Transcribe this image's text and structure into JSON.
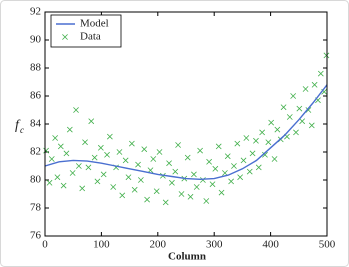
{
  "chart_data": {
    "type": "line",
    "x_label": "Column",
    "y_label": "f",
    "y_label_subscript": "c",
    "xlim": [
      0,
      500
    ],
    "xticks": [
      0,
      100,
      200,
      300,
      400,
      500
    ],
    "ylim": [
      76,
      92
    ],
    "yticks": [
      76,
      78,
      80,
      82,
      84,
      86,
      88,
      90,
      92
    ],
    "legend": "upper left",
    "series": [
      {
        "name": "Model",
        "type": "line",
        "color": "#4a6fd0",
        "x": [
          0,
          25,
          50,
          75,
          100,
          125,
          150,
          175,
          200,
          225,
          250,
          275,
          300,
          325,
          350,
          375,
          400,
          425,
          450,
          475,
          500
        ],
        "values": [
          81.0,
          81.3,
          81.4,
          81.35,
          81.2,
          81.0,
          80.8,
          80.6,
          80.4,
          80.25,
          80.1,
          80.05,
          80.1,
          80.35,
          80.8,
          81.4,
          82.3,
          83.2,
          84.3,
          85.5,
          86.8
        ]
      },
      {
        "name": "Data",
        "type": "scatter",
        "color": "#3fae49",
        "x": [
          2,
          8,
          12,
          18,
          22,
          28,
          33,
          38,
          44,
          49,
          55,
          60,
          66,
          71,
          77,
          82,
          88,
          93,
          99,
          104,
          110,
          115,
          121,
          126,
          132,
          137,
          143,
          148,
          154,
          159,
          165,
          170,
          176,
          181,
          187,
          192,
          198,
          203,
          209,
          214,
          220,
          225,
          231,
          236,
          242,
          247,
          253,
          258,
          264,
          269,
          275,
          280,
          286,
          291,
          297,
          302,
          308,
          313,
          319,
          324,
          330,
          335,
          341,
          346,
          352,
          357,
          363,
          368,
          374,
          379,
          385,
          390,
          396,
          401,
          407,
          412,
          418,
          423,
          429,
          434,
          440,
          445,
          451,
          456,
          462,
          467,
          473,
          478,
          484,
          489,
          495,
          499
        ],
        "values": [
          82.1,
          79.8,
          81.5,
          83.0,
          80.2,
          82.4,
          79.6,
          81.9,
          83.6,
          80.5,
          85.0,
          81.0,
          79.4,
          82.7,
          80.9,
          84.2,
          81.6,
          79.9,
          82.3,
          80.4,
          81.8,
          83.1,
          79.5,
          80.9,
          82.0,
          78.9,
          81.4,
          80.2,
          82.6,
          79.3,
          81.1,
          80.0,
          82.2,
          78.6,
          80.7,
          81.5,
          79.2,
          82.0,
          80.3,
          78.4,
          81.2,
          79.8,
          80.6,
          82.5,
          79.0,
          80.1,
          81.6,
          78.8,
          80.4,
          79.5,
          82.1,
          80.0,
          78.5,
          81.3,
          79.7,
          80.8,
          82.4,
          79.1,
          80.5,
          81.7,
          79.9,
          81.0,
          82.6,
          80.2,
          81.4,
          83.0,
          80.6,
          81.9,
          82.8,
          80.9,
          83.4,
          81.8,
          82.7,
          84.1,
          81.5,
          83.6,
          82.9,
          85.2,
          83.1,
          84.5,
          86.0,
          83.4,
          85.1,
          84.2,
          86.5,
          85.0,
          83.9,
          86.8,
          85.7,
          87.6,
          86.3,
          88.9
        ]
      }
    ]
  }
}
